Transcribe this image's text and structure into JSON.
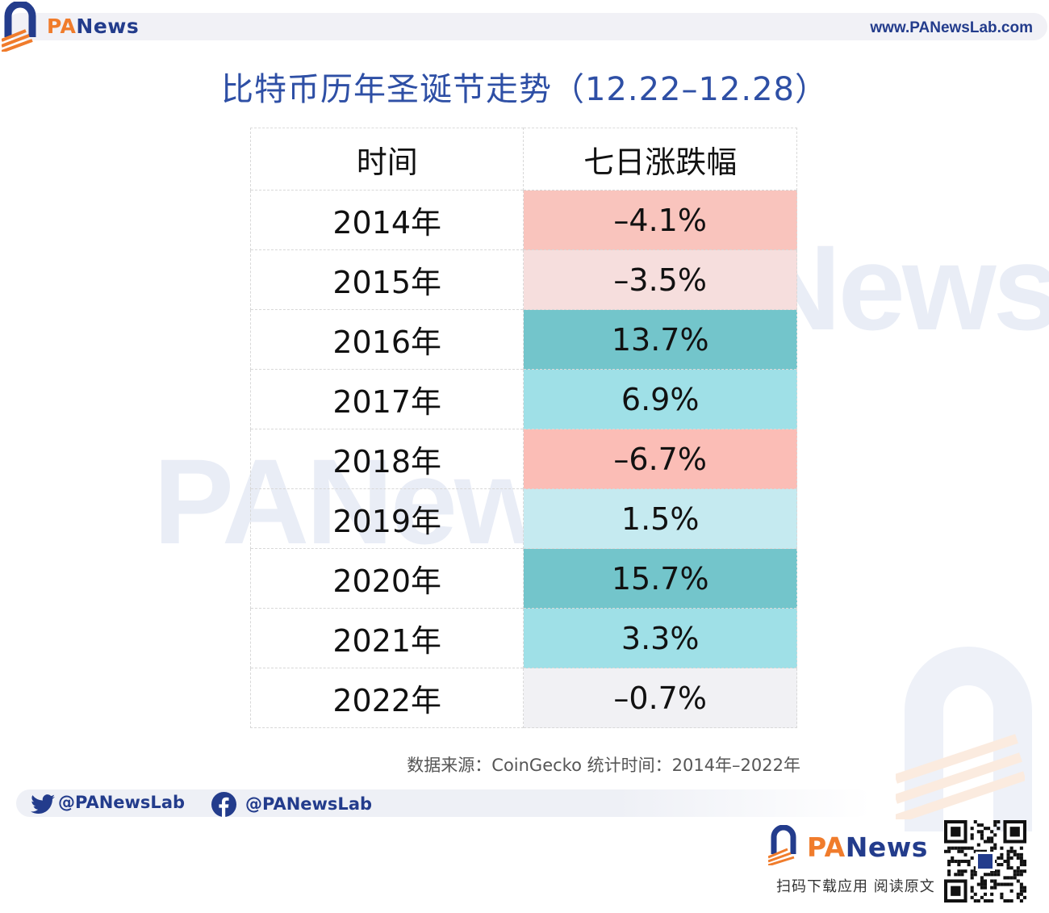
{
  "header": {
    "brand_pa": "PA",
    "brand_rest": "News",
    "url": "www.PANewsLab.com"
  },
  "title": "比特币历年圣诞节走势（12.22–12.28）",
  "watermark": "PANews",
  "chart_data": {
    "type": "table",
    "columns": [
      "时间",
      "七日涨跌幅"
    ],
    "rows": [
      {
        "year": "2014年",
        "change": "–4.1%",
        "value": -4.1,
        "color": "#f9c4bd"
      },
      {
        "year": "2015年",
        "change": "–3.5%",
        "value": -3.5,
        "color": "#f6dedd"
      },
      {
        "year": "2016年",
        "change": "13.7%",
        "value": 13.7,
        "color": "#73c5cb"
      },
      {
        "year": "2017年",
        "change": "6.9%",
        "value": 6.9,
        "color": "#9fe0e7"
      },
      {
        "year": "2018年",
        "change": "–6.7%",
        "value": -6.7,
        "color": "#fbbdb6"
      },
      {
        "year": "2019年",
        "change": "1.5%",
        "value": 1.5,
        "color": "#c5eaf0"
      },
      {
        "year": "2020年",
        "change": "15.7%",
        "value": 15.7,
        "color": "#73c5cb"
      },
      {
        "year": "2021年",
        "change": "3.3%",
        "value": 3.3,
        "color": "#9fe0e7"
      },
      {
        "year": "2022年",
        "change": "–0.7%",
        "value": -0.7,
        "color": "#f1f1f4"
      }
    ]
  },
  "source": "数据来源：CoinGecko  统计时间：2014年–2022年",
  "social": {
    "twitter": "@PANewsLab",
    "facebook": "@PANewsLab"
  },
  "footer": {
    "brand_pa": "PA",
    "brand_rest": "News",
    "download": "扫码下载应用  阅读原文"
  }
}
